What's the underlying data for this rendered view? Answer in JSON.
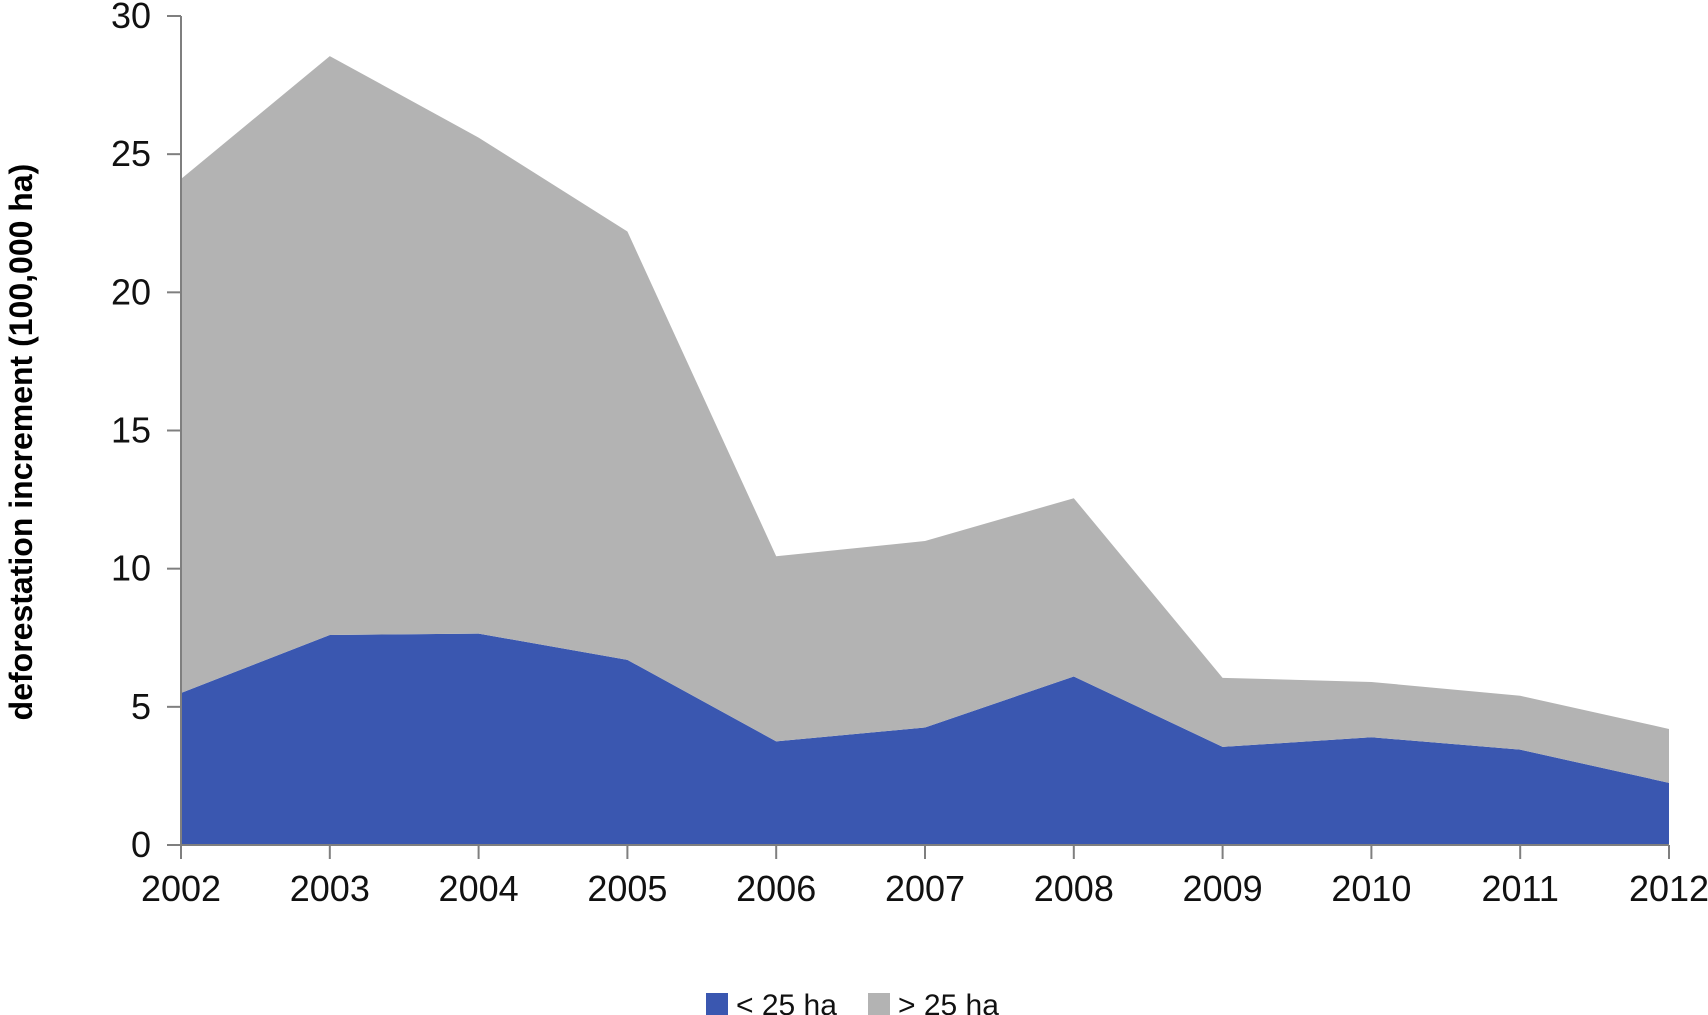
{
  "chart_data": {
    "type": "area",
    "stacked": true,
    "x": [
      "2002",
      "2003",
      "2004",
      "2005",
      "2006",
      "2007",
      "2008",
      "2009",
      "2010",
      "2011",
      "2012"
    ],
    "series": [
      {
        "name": "< 25 ha",
        "color": "#3a57b0",
        "values": [
          5.5,
          7.6,
          7.65,
          6.7,
          3.75,
          4.25,
          6.1,
          3.55,
          3.9,
          3.45,
          2.25
        ]
      },
      {
        "name": "> 25 ha",
        "color": "#b3b3b3",
        "values": [
          18.6,
          20.95,
          17.95,
          15.5,
          6.7,
          6.75,
          6.45,
          2.5,
          2.0,
          1.95,
          1.95
        ]
      }
    ],
    "ylabel": "deforestation increment  (100,000 ha)",
    "xlabel": "",
    "ylim": [
      0,
      30
    ],
    "yticks": [
      "0",
      "5",
      "10",
      "15",
      "20",
      "25",
      "30"
    ],
    "grid": false,
    "legend": "bottom-center"
  }
}
